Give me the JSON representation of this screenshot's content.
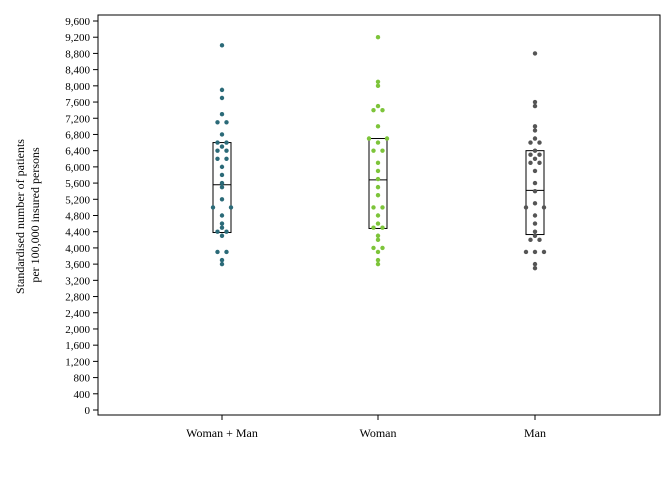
{
  "chart_data": {
    "type": "scatter",
    "subtype": "strip-plot-with-box",
    "ylabel_line1": "Standardised number of patients",
    "ylabel_line2": "per 100,000 insured persons",
    "ylim": [
      0,
      9600
    ],
    "yticks": [
      0,
      400,
      800,
      1200,
      1600,
      2000,
      2400,
      2800,
      3200,
      3600,
      4000,
      4400,
      4800,
      5200,
      5600,
      6000,
      6400,
      6800,
      7200,
      7600,
      8000,
      8400,
      8800,
      9200,
      9600
    ],
    "ytick_labels": [
      "0",
      "400",
      "800",
      "1,200",
      "1,600",
      "2,000",
      "2,400",
      "2,800",
      "3,200",
      "3,600",
      "4,000",
      "4,400",
      "4,800",
      "5,200",
      "5,600",
      "6,000",
      "6,400",
      "6,800",
      "7,200",
      "7,600",
      "8,000",
      "8,400",
      "8,800",
      "9,200",
      "9,600"
    ],
    "grid": false,
    "categories": [
      "Woman + Man",
      "Woman",
      "Man"
    ],
    "series": [
      {
        "color": "#2b6a78",
        "box": {
          "q1": 4380,
          "median": 5560,
          "q3": 6600
        },
        "points": [
          {
            "y": 9000,
            "jitter": 0
          },
          {
            "y": 7900,
            "jitter": 0
          },
          {
            "y": 7700,
            "jitter": 0
          },
          {
            "y": 7300,
            "jitter": 0
          },
          {
            "y": 7100,
            "jitter": -1
          },
          {
            "y": 7100,
            "jitter": 1
          },
          {
            "y": 6800,
            "jitter": 0
          },
          {
            "y": 6600,
            "jitter": -1
          },
          {
            "y": 6600,
            "jitter": 1
          },
          {
            "y": 6500,
            "jitter": 0
          },
          {
            "y": 6400,
            "jitter": -1
          },
          {
            "y": 6400,
            "jitter": 1
          },
          {
            "y": 6200,
            "jitter": -1
          },
          {
            "y": 6200,
            "jitter": 1
          },
          {
            "y": 6000,
            "jitter": 0
          },
          {
            "y": 5800,
            "jitter": 0
          },
          {
            "y": 5600,
            "jitter": 0
          },
          {
            "y": 5500,
            "jitter": 0
          },
          {
            "y": 5200,
            "jitter": 0
          },
          {
            "y": 5000,
            "jitter": -2
          },
          {
            "y": 5000,
            "jitter": 2
          },
          {
            "y": 4800,
            "jitter": 0
          },
          {
            "y": 4600,
            "jitter": 0
          },
          {
            "y": 4500,
            "jitter": 0
          },
          {
            "y": 4400,
            "jitter": -1
          },
          {
            "y": 4400,
            "jitter": 1
          },
          {
            "y": 4300,
            "jitter": 0
          },
          {
            "y": 3900,
            "jitter": -1
          },
          {
            "y": 3900,
            "jitter": 1
          },
          {
            "y": 3700,
            "jitter": 0
          },
          {
            "y": 3600,
            "jitter": 0
          }
        ]
      },
      {
        "color": "#7dc43a",
        "box": {
          "q1": 4480,
          "median": 5680,
          "q3": 6700
        },
        "points": [
          {
            "y": 9200,
            "jitter": 0
          },
          {
            "y": 8100,
            "jitter": 0
          },
          {
            "y": 8000,
            "jitter": 0
          },
          {
            "y": 7500,
            "jitter": 0
          },
          {
            "y": 7400,
            "jitter": -1
          },
          {
            "y": 7400,
            "jitter": 1
          },
          {
            "y": 7000,
            "jitter": 0
          },
          {
            "y": 6700,
            "jitter": -2
          },
          {
            "y": 6700,
            "jitter": 2
          },
          {
            "y": 6600,
            "jitter": 0
          },
          {
            "y": 6400,
            "jitter": -1
          },
          {
            "y": 6400,
            "jitter": 1
          },
          {
            "y": 6100,
            "jitter": 0
          },
          {
            "y": 5900,
            "jitter": 0
          },
          {
            "y": 5700,
            "jitter": 0
          },
          {
            "y": 5500,
            "jitter": 0
          },
          {
            "y": 5300,
            "jitter": 0
          },
          {
            "y": 5000,
            "jitter": -1
          },
          {
            "y": 5000,
            "jitter": 1
          },
          {
            "y": 4800,
            "jitter": 0
          },
          {
            "y": 4600,
            "jitter": 0
          },
          {
            "y": 4500,
            "jitter": -1
          },
          {
            "y": 4500,
            "jitter": 1
          },
          {
            "y": 4300,
            "jitter": 0
          },
          {
            "y": 4200,
            "jitter": 0
          },
          {
            "y": 4000,
            "jitter": -1
          },
          {
            "y": 4000,
            "jitter": 1
          },
          {
            "y": 3900,
            "jitter": 0
          },
          {
            "y": 3700,
            "jitter": 0
          },
          {
            "y": 3600,
            "jitter": 0
          }
        ]
      },
      {
        "color": "#555555",
        "box": {
          "q1": 4330,
          "median": 5420,
          "q3": 6400
        },
        "points": [
          {
            "y": 8800,
            "jitter": 0
          },
          {
            "y": 7600,
            "jitter": 0
          },
          {
            "y": 7500,
            "jitter": 0
          },
          {
            "y": 7000,
            "jitter": 0
          },
          {
            "y": 6900,
            "jitter": 0
          },
          {
            "y": 6700,
            "jitter": 0
          },
          {
            "y": 6600,
            "jitter": -1
          },
          {
            "y": 6600,
            "jitter": 1
          },
          {
            "y": 6400,
            "jitter": 0
          },
          {
            "y": 6300,
            "jitter": -1
          },
          {
            "y": 6300,
            "jitter": 1
          },
          {
            "y": 6200,
            "jitter": 0
          },
          {
            "y": 6100,
            "jitter": -1
          },
          {
            "y": 6100,
            "jitter": 1
          },
          {
            "y": 5900,
            "jitter": 0
          },
          {
            "y": 5600,
            "jitter": 0
          },
          {
            "y": 5400,
            "jitter": 0
          },
          {
            "y": 5100,
            "jitter": 0
          },
          {
            "y": 5000,
            "jitter": -2
          },
          {
            "y": 5000,
            "jitter": 2
          },
          {
            "y": 4800,
            "jitter": 0
          },
          {
            "y": 4600,
            "jitter": 0
          },
          {
            "y": 4400,
            "jitter": 0
          },
          {
            "y": 4300,
            "jitter": 0
          },
          {
            "y": 4200,
            "jitter": -1
          },
          {
            "y": 4200,
            "jitter": 1
          },
          {
            "y": 3900,
            "jitter": -2
          },
          {
            "y": 3900,
            "jitter": 0
          },
          {
            "y": 3900,
            "jitter": 2
          },
          {
            "y": 3600,
            "jitter": 0
          },
          {
            "y": 3500,
            "jitter": 0
          }
        ]
      }
    ]
  }
}
